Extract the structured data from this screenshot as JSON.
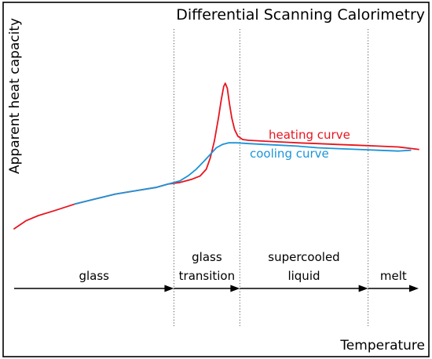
{
  "chart_data": {
    "type": "line",
    "title": "Differential Scanning Calorimetry",
    "xlabel": "Temperature",
    "ylabel": "Apparent heat capacity",
    "xlim": [
      0,
      100
    ],
    "ylim": [
      0,
      100
    ],
    "grid": false,
    "legend": "inline labels",
    "series": [
      {
        "name": "heating curve",
        "color": "#e8141e",
        "points": [
          [
            0,
            10
          ],
          [
            3,
            15
          ],
          [
            6,
            18
          ],
          [
            10,
            21
          ],
          [
            15,
            25
          ],
          [
            20,
            28
          ],
          [
            25,
            31
          ],
          [
            30,
            33
          ],
          [
            35,
            35
          ],
          [
            38,
            37
          ],
          [
            41,
            38
          ],
          [
            44,
            40
          ],
          [
            46,
            42
          ],
          [
            47.5,
            46
          ],
          [
            48.5,
            53
          ],
          [
            49.5,
            63
          ],
          [
            50.5,
            77
          ],
          [
            51.2,
            88
          ],
          [
            51.8,
            96
          ],
          [
            52.2,
            98
          ],
          [
            52.7,
            95
          ],
          [
            53.2,
            86
          ],
          [
            53.8,
            77
          ],
          [
            54.5,
            70
          ],
          [
            55.3,
            66
          ],
          [
            56.5,
            64
          ],
          [
            58,
            63.5
          ],
          [
            62,
            63
          ],
          [
            66,
            62.5
          ],
          [
            70,
            62
          ],
          [
            75,
            61.5
          ],
          [
            80,
            61
          ],
          [
            85,
            60.5
          ],
          [
            90,
            60
          ],
          [
            95,
            59.5
          ],
          [
            100,
            58
          ]
        ]
      },
      {
        "name": "cooling curve",
        "color": "#1a94d9",
        "points": [
          [
            15,
            25
          ],
          [
            20,
            28
          ],
          [
            25,
            31
          ],
          [
            30,
            33
          ],
          [
            35,
            35
          ],
          [
            38,
            37
          ],
          [
            41,
            39
          ],
          [
            43,
            42
          ],
          [
            45,
            46
          ],
          [
            47,
            51
          ],
          [
            48.5,
            55
          ],
          [
            50,
            59
          ],
          [
            51.5,
            61
          ],
          [
            53,
            62
          ],
          [
            55,
            62
          ],
          [
            58,
            61.5
          ],
          [
            62,
            61
          ],
          [
            66,
            60.5
          ],
          [
            70,
            60
          ],
          [
            75,
            59
          ],
          [
            80,
            58.5
          ],
          [
            85,
            58
          ],
          [
            90,
            57.5
          ],
          [
            95,
            57
          ],
          [
            98,
            57.5
          ]
        ]
      }
    ],
    "regions": [
      {
        "label": "glass",
        "from": 0,
        "to": 39.5
      },
      {
        "label_lines": [
          "glass",
          "transition"
        ],
        "from": 39.5,
        "to": 55.8
      },
      {
        "label_lines": [
          "supercooled",
          "liquid"
        ],
        "from": 55.8,
        "to": 87.5
      },
      {
        "label": "melt",
        "from": 87.5,
        "to": 100
      }
    ],
    "boundaries": [
      39.5,
      55.8,
      87.5
    ]
  }
}
